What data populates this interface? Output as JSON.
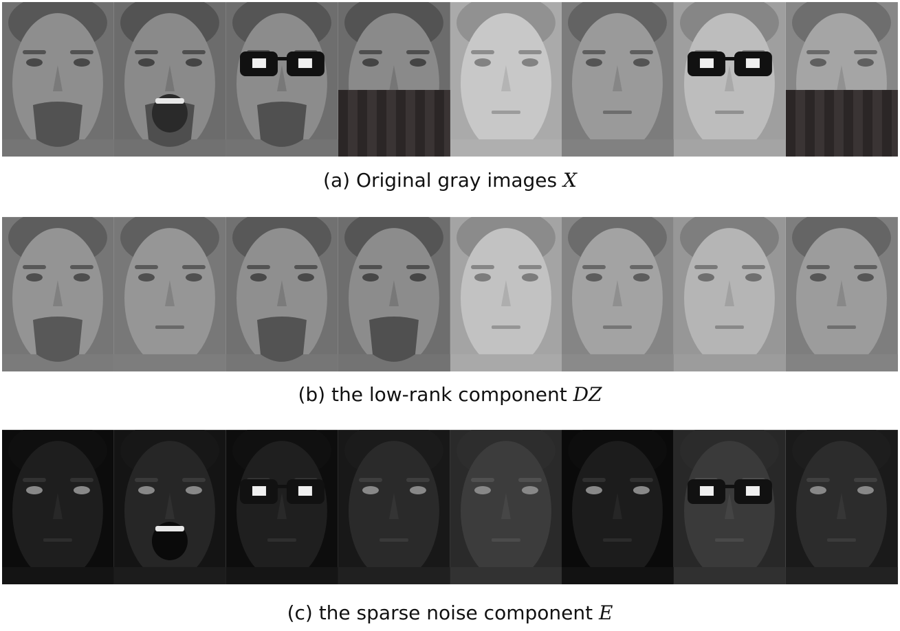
{
  "figure": {
    "panels": [
      {
        "id": "a",
        "caption_text": "(a) Original gray images ",
        "caption_math": "X",
        "faces": [
          {
            "shade": "#8e8e8e",
            "beard": true,
            "glasses": false,
            "mask": false,
            "open_mouth": false
          },
          {
            "shade": "#8a8a8a",
            "beard": true,
            "glasses": false,
            "mask": false,
            "open_mouth": true
          },
          {
            "shade": "#8c8c8c",
            "beard": true,
            "glasses": true,
            "mask": false,
            "open_mouth": false
          },
          {
            "shade": "#8a8a8a",
            "beard": false,
            "glasses": false,
            "mask": true,
            "open_mouth": false
          },
          {
            "shade": "#c8c8c8",
            "beard": false,
            "glasses": false,
            "mask": false,
            "open_mouth": false
          },
          {
            "shade": "#9a9a9a",
            "beard": false,
            "glasses": false,
            "mask": false,
            "open_mouth": false
          },
          {
            "shade": "#bdbdbd",
            "beard": false,
            "glasses": true,
            "mask": false,
            "open_mouth": false
          },
          {
            "shade": "#a5a5a5",
            "beard": false,
            "glasses": false,
            "mask": true,
            "open_mouth": false
          }
        ]
      },
      {
        "id": "b",
        "caption_text": "(b) the low-rank component ",
        "caption_math": "DZ",
        "faces": [
          {
            "shade": "#949494",
            "beard": true,
            "glasses": false,
            "mask": false,
            "open_mouth": false
          },
          {
            "shade": "#969696",
            "beard": false,
            "glasses": false,
            "mask": false,
            "open_mouth": false
          },
          {
            "shade": "#8f8f8f",
            "beard": true,
            "glasses": false,
            "mask": false,
            "open_mouth": false
          },
          {
            "shade": "#8c8c8c",
            "beard": true,
            "glasses": false,
            "mask": false,
            "open_mouth": false
          },
          {
            "shade": "#c2c2c2",
            "beard": false,
            "glasses": false,
            "mask": false,
            "open_mouth": false
          },
          {
            "shade": "#a3a3a3",
            "beard": false,
            "glasses": false,
            "mask": false,
            "open_mouth": false
          },
          {
            "shade": "#b5b5b5",
            "beard": false,
            "glasses": false,
            "mask": false,
            "open_mouth": false
          },
          {
            "shade": "#9c9c9c",
            "beard": false,
            "glasses": false,
            "mask": false,
            "open_mouth": false
          }
        ]
      },
      {
        "id": "c",
        "caption_text": "(c) the sparse noise component ",
        "caption_math": "E",
        "faces": [
          {
            "shade": "#1e1e1e",
            "beard": false,
            "glasses": false,
            "mask": false,
            "open_mouth": false
          },
          {
            "shade": "#262626",
            "beard": false,
            "glasses": false,
            "mask": false,
            "open_mouth": true
          },
          {
            "shade": "#1f1f1f",
            "beard": false,
            "glasses": true,
            "mask": false,
            "open_mouth": false
          },
          {
            "shade": "#2a2a2a",
            "beard": false,
            "glasses": false,
            "mask": false,
            "open_mouth": false
          },
          {
            "shade": "#3c3c3c",
            "beard": false,
            "glasses": false,
            "mask": false,
            "open_mouth": false
          },
          {
            "shade": "#1c1c1c",
            "beard": false,
            "glasses": false,
            "mask": false,
            "open_mouth": false
          },
          {
            "shade": "#3a3a3a",
            "beard": false,
            "glasses": true,
            "mask": false,
            "open_mouth": false
          },
          {
            "shade": "#2c2c2c",
            "beard": false,
            "glasses": false,
            "mask": false,
            "open_mouth": false
          }
        ]
      }
    ]
  }
}
